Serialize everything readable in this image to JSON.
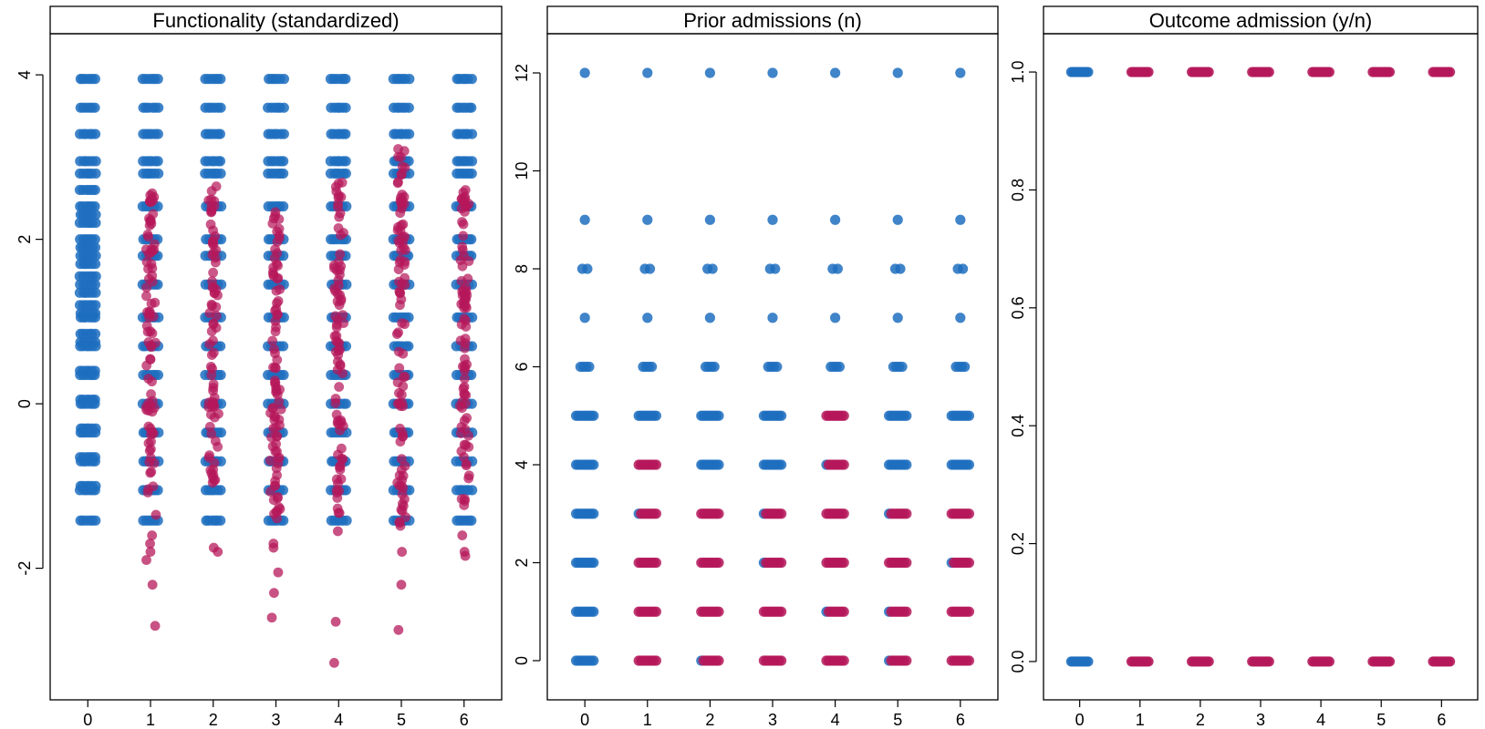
{
  "colors": {
    "group_0": "#1f6fbf",
    "other_groups": "#b5185a",
    "strip_background": "#ffffff",
    "frame": "#000000"
  },
  "chart_data": [
    {
      "type": "scatter",
      "title": "Functionality (standardized)",
      "x_categories": [
        "0",
        "1",
        "2",
        "3",
        "4",
        "5",
        "6"
      ],
      "xlim": [
        -0.6,
        6.6
      ],
      "ylim": [
        -3.6,
        4.5
      ],
      "y_ticks": [
        -2,
        0,
        2,
        4
      ],
      "grid": false,
      "jitter": true,
      "note_levels": [
        -1.42,
        -1.05,
        -1.0,
        -0.7,
        -0.65,
        -0.35,
        -0.3,
        0.0,
        0.05,
        0.35,
        0.4,
        0.7,
        0.75,
        0.85,
        1.05,
        1.1,
        1.2,
        1.35,
        1.45,
        1.55,
        1.7,
        1.8,
        1.9,
        2.0,
        2.2,
        2.3,
        2.4,
        2.6,
        2.8,
        2.95,
        3.28,
        3.6,
        3.95
      ],
      "series": [
        {
          "group": "0",
          "color": "#1f6fbf",
          "blue_levels": [
            -1.42,
            -1.05,
            -1.0,
            -0.7,
            -0.65,
            -0.35,
            -0.3,
            0.0,
            0.05,
            0.35,
            0.4,
            0.7,
            0.75,
            0.85,
            1.05,
            1.1,
            1.2,
            1.35,
            1.45,
            1.55,
            1.7,
            1.8,
            1.9,
            2.0,
            2.2,
            2.3,
            2.4,
            2.6,
            2.8,
            2.95,
            3.28,
            3.6,
            3.95
          ],
          "red_points": []
        },
        {
          "group": "1",
          "blue_levels": [
            -1.42,
            -1.05,
            -0.7,
            -0.35,
            0.0,
            0.35,
            0.7,
            1.05,
            1.45,
            1.8,
            2.0,
            2.4,
            2.8,
            2.95,
            3.28,
            3.6,
            3.95
          ],
          "red_range": [
            -1.1,
            2.6
          ],
          "red_count": 80,
          "red_outliers": [
            -1.35,
            -1.6,
            -1.7,
            -1.8,
            -1.9,
            -2.2,
            -2.7
          ]
        },
        {
          "group": "2",
          "blue_levels": [
            -1.42,
            -1.05,
            -0.7,
            -0.35,
            0.0,
            0.35,
            0.7,
            1.05,
            1.45,
            1.8,
            2.0,
            2.4,
            2.8,
            2.95,
            3.28,
            3.6,
            3.95
          ],
          "red_range": [
            -1.1,
            2.8
          ],
          "red_count": 75,
          "red_outliers": [
            -1.75,
            -1.8
          ]
        },
        {
          "group": "3",
          "blue_levels": [
            -1.42,
            -1.05,
            -0.7,
            -0.35,
            0.0,
            0.35,
            0.7,
            1.05,
            1.45,
            1.8,
            2.0,
            2.4,
            2.8,
            2.95,
            3.28,
            3.6,
            3.95
          ],
          "red_range": [
            -1.4,
            2.4
          ],
          "red_count": 85,
          "red_outliers": [
            -1.7,
            -1.75,
            -2.05,
            -2.3,
            -2.6
          ]
        },
        {
          "group": "4",
          "blue_levels": [
            -1.42,
            -1.05,
            -0.7,
            -0.35,
            0.0,
            0.35,
            0.7,
            1.05,
            1.45,
            1.8,
            2.0,
            2.4,
            2.8,
            2.95,
            3.28,
            3.6,
            3.95
          ],
          "red_range": [
            -1.4,
            2.8
          ],
          "red_count": 80,
          "red_outliers": [
            -1.55,
            -2.65,
            -3.15
          ]
        },
        {
          "group": "5",
          "blue_levels": [
            -1.42,
            -1.05,
            -0.7,
            -0.35,
            0.0,
            0.35,
            0.7,
            1.05,
            1.45,
            1.8,
            2.0,
            2.4,
            2.8,
            2.95,
            3.28,
            3.6,
            3.95
          ],
          "red_range": [
            -1.5,
            3.1
          ],
          "red_count": 90,
          "red_outliers": [
            -1.8,
            -2.2,
            -2.75
          ]
        },
        {
          "group": "6",
          "blue_levels": [
            -1.42,
            -1.05,
            -0.7,
            -0.35,
            0.0,
            0.35,
            0.7,
            1.05,
            1.45,
            1.8,
            2.0,
            2.4,
            2.8,
            2.95,
            3.28,
            3.6,
            3.95
          ],
          "red_range": [
            -1.3,
            2.6
          ],
          "red_count": 85,
          "red_outliers": [
            -1.6,
            -1.8,
            -1.85
          ]
        }
      ]
    },
    {
      "type": "scatter",
      "title": "Prior admissions (n)",
      "x_categories": [
        "0",
        "1",
        "2",
        "3",
        "4",
        "5",
        "6"
      ],
      "xlim": [
        -0.6,
        6.6
      ],
      "ylim": [
        -0.8,
        12.8
      ],
      "y_ticks": [
        0,
        2,
        4,
        6,
        8,
        10,
        12
      ],
      "grid": false,
      "jitter": true,
      "groups": [
        {
          "group": "0",
          "red_levels": [],
          "blue_levels": [
            0,
            1,
            2,
            3,
            4,
            5,
            6,
            7,
            8,
            9,
            12
          ]
        },
        {
          "group": "1",
          "red_levels": [
            0,
            1,
            2,
            3,
            4
          ],
          "blue_levels": [
            5,
            6,
            7,
            8,
            9,
            12
          ]
        },
        {
          "group": "2",
          "red_levels": [
            0,
            1,
            2,
            3
          ],
          "blue_levels": [
            4,
            5,
            6,
            7,
            8,
            9,
            12
          ]
        },
        {
          "group": "3",
          "red_levels": [
            0,
            1,
            2,
            3
          ],
          "blue_levels": [
            4,
            5,
            6,
            7,
            8,
            9,
            12
          ]
        },
        {
          "group": "4",
          "red_levels": [
            0,
            1,
            2,
            3,
            4,
            5
          ],
          "blue_levels": [
            6,
            7,
            8,
            9,
            12
          ]
        },
        {
          "group": "5",
          "red_levels": [
            0,
            1,
            2,
            3
          ],
          "blue_levels": [
            4,
            5,
            6,
            7,
            8,
            9,
            12
          ]
        },
        {
          "group": "6",
          "red_levels": [
            0,
            1,
            2,
            3
          ],
          "blue_levels": [
            4,
            5,
            6,
            7,
            8,
            9,
            12
          ]
        }
      ]
    },
    {
      "type": "scatter",
      "title": "Outcome admission (y/n)",
      "x_categories": [
        "0",
        "1",
        "2",
        "3",
        "4",
        "5",
        "6"
      ],
      "xlim": [
        -0.6,
        6.6
      ],
      "ylim": [
        -0.065,
        1.065
      ],
      "y_ticks": [
        "0.0",
        "0.2",
        "0.4",
        "0.6",
        "0.8",
        "1.0"
      ],
      "grid": false,
      "jitter": true,
      "groups": [
        {
          "group": "0",
          "color": "#1f6fbf",
          "levels": [
            0,
            1
          ]
        },
        {
          "group": "1",
          "color": "#b5185a",
          "levels": [
            0,
            1
          ]
        },
        {
          "group": "2",
          "color": "#b5185a",
          "levels": [
            0,
            1
          ]
        },
        {
          "group": "3",
          "color": "#b5185a",
          "levels": [
            0,
            1
          ]
        },
        {
          "group": "4",
          "color": "#b5185a",
          "levels": [
            0,
            1
          ]
        },
        {
          "group": "5",
          "color": "#b5185a",
          "levels": [
            0,
            1
          ]
        },
        {
          "group": "6",
          "color": "#b5185a",
          "levels": [
            0,
            1
          ]
        }
      ]
    }
  ]
}
